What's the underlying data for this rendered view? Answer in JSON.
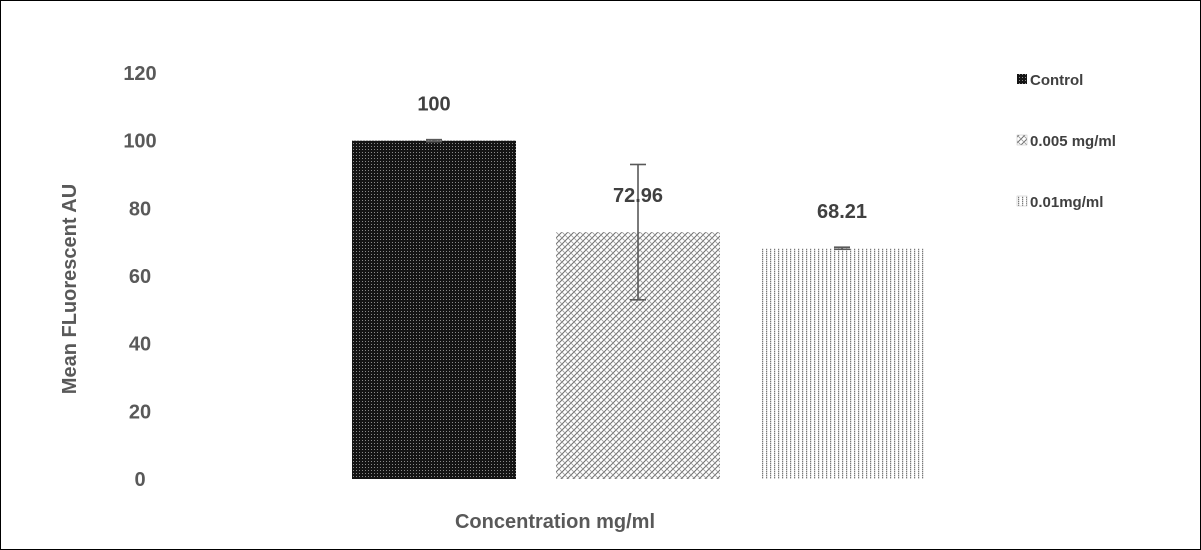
{
  "chart_data": {
    "type": "bar",
    "title": "",
    "xlabel": "Concentration mg/ml",
    "ylabel": "Mean FLuorescent AU",
    "ylim": [
      0,
      120
    ],
    "yticks": [
      0,
      20,
      40,
      60,
      80,
      100,
      120
    ],
    "grid": false,
    "legend_position": "right",
    "series": [
      {
        "name": "Control",
        "value": 100,
        "label": "100",
        "error": 0.3,
        "pattern": "dense-dots-dark",
        "color": "#1a1a1a"
      },
      {
        "name": "0.005 mg/ml",
        "value": 72.96,
        "label": "72.96",
        "error": 20,
        "pattern": "crosshatch",
        "color": "#7f7f7f"
      },
      {
        "name": "0.01mg/ml",
        "value": 68.21,
        "label": "68.21",
        "error": 0.3,
        "pattern": "dotted-columns",
        "color": "#7f7f7f"
      }
    ]
  }
}
